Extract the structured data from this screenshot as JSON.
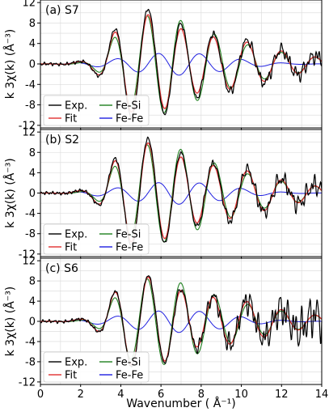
{
  "chart_data": [
    {
      "type": "line",
      "title": "(a) S7",
      "xlabel": "",
      "ylabel": "k 3χ(k) (Å⁻³)",
      "xlim": [
        0,
        14
      ],
      "ylim": [
        -12.5,
        12.5
      ],
      "yticks": [
        -12,
        -8,
        -4,
        0,
        4,
        8,
        12
      ],
      "grid": true,
      "legend": {
        "placement": "bottom-left",
        "columns": 2
      },
      "amplitude": {
        "exp": 1.0,
        "fit": 0.9,
        "fesi": 0.87,
        "noise": 0.9
      },
      "series": [
        {
          "name": "Exp.",
          "color": "#000000"
        },
        {
          "name": "Fit",
          "color": "#e03030"
        },
        {
          "name": "Fe-Si",
          "color": "#208020"
        },
        {
          "name": "Fe-Fe",
          "color": "#2020e0"
        }
      ]
    },
    {
      "type": "line",
      "title": "(b) S2",
      "xlabel": "",
      "ylabel": "k 3χ(k) (Å⁻³)",
      "xlim": [
        0,
        14
      ],
      "ylim": [
        -12.5,
        12.5
      ],
      "yticks": [
        -12,
        -8,
        -4,
        0,
        4,
        8,
        12
      ],
      "grid": true,
      "legend": {
        "placement": "bottom-left",
        "columns": 2
      },
      "amplitude": {
        "exp": 1.0,
        "fit": 0.92,
        "fesi": 0.88,
        "noise": 1.1
      },
      "series": [
        {
          "name": "Exp.",
          "color": "#000000"
        },
        {
          "name": "Fit",
          "color": "#e03030"
        },
        {
          "name": "Fe-Si",
          "color": "#208020"
        },
        {
          "name": "Fe-Fe",
          "color": "#2020e0"
        }
      ]
    },
    {
      "type": "line",
      "title": "(c) S6",
      "xlabel": "Wavenumber ( Å⁻¹)",
      "ylabel": "k 3χ(k) (Å⁻³)",
      "xlim": [
        0,
        14
      ],
      "ylim": [
        -12.5,
        12.5
      ],
      "yticks": [
        -12,
        -8,
        -4,
        0,
        4,
        8,
        12
      ],
      "xticks": [
        0,
        2,
        4,
        6,
        8,
        10,
        12,
        14
      ],
      "grid": true,
      "legend": {
        "placement": "bottom-left",
        "columns": 2
      },
      "amplitude": {
        "exp": 0.85,
        "fit": 0.82,
        "fesi": 0.78,
        "noise": 2.4
      },
      "series": [
        {
          "name": "Exp.",
          "color": "#000000"
        },
        {
          "name": "Fit",
          "color": "#e03030"
        },
        {
          "name": "Fe-Si",
          "color": "#208020"
        },
        {
          "name": "Fe-Fe",
          "color": "#2020e0"
        }
      ]
    }
  ]
}
